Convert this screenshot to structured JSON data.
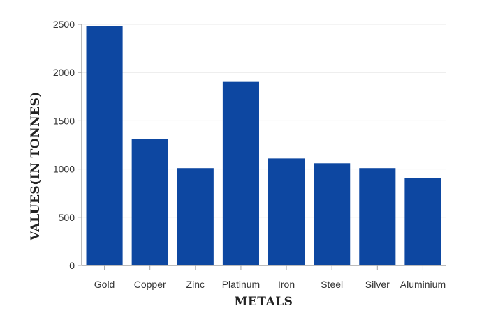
{
  "chart_data": {
    "type": "bar",
    "title": "",
    "xlabel": "METALS",
    "ylabel": "VALUES(IN TONNES)",
    "categories": [
      "Gold",
      "Copper",
      "Zinc",
      "Platinum",
      "Iron",
      "Steel",
      "Silver",
      "Aluminium"
    ],
    "values": [
      2480,
      1310,
      1010,
      1910,
      1110,
      1060,
      1010,
      910
    ],
    "ylim": [
      0,
      2500
    ],
    "yticks": [
      0,
      500,
      1000,
      1500,
      2000,
      2500
    ],
    "grid": true,
    "colors": {
      "bar": "#0d47a1"
    }
  }
}
